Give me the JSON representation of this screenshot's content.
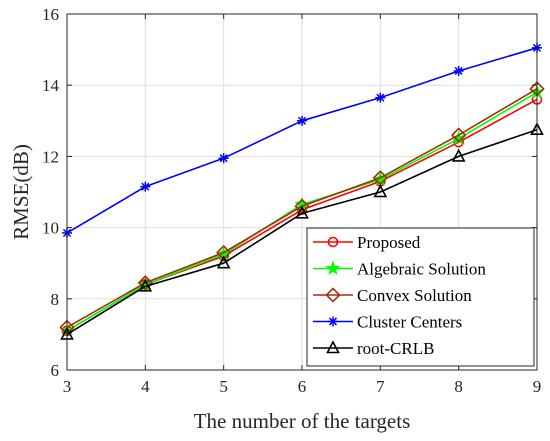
{
  "chart_data": {
    "type": "line",
    "title": "",
    "xlabel": "The number of the targets",
    "ylabel": "RMSE(dB)",
    "xlim": [
      3,
      9
    ],
    "ylim": [
      6,
      16
    ],
    "xticks": [
      3,
      4,
      5,
      6,
      7,
      8,
      9
    ],
    "yticks": [
      6,
      8,
      10,
      12,
      14,
      16
    ],
    "grid": true,
    "legend_position": "bottom-right",
    "x": [
      3,
      4,
      5,
      6,
      7,
      8,
      9
    ],
    "series": [
      {
        "name": "Proposed",
        "color": "#ff0000",
        "marker": "circle",
        "values": [
          7.1,
          8.4,
          9.2,
          10.5,
          11.3,
          12.4,
          13.6
        ]
      },
      {
        "name": "Algebraic Solution",
        "color": "#00ff00",
        "marker": "star",
        "values": [
          7.1,
          8.4,
          9.25,
          10.65,
          11.35,
          12.5,
          13.8
        ]
      },
      {
        "name": "Convex Solution",
        "color": "#a0300a",
        "marker": "diamond",
        "values": [
          7.2,
          8.45,
          9.3,
          10.6,
          11.4,
          12.6,
          13.9
        ]
      },
      {
        "name": "Cluster Centers",
        "color": "#0000ff",
        "marker": "asterisk",
        "values": [
          9.85,
          11.15,
          11.95,
          13.0,
          13.65,
          14.4,
          15.05
        ]
      },
      {
        "name": "root-CRLB",
        "color": "#000000",
        "marker": "triangle",
        "values": [
          7.0,
          8.35,
          9.0,
          10.4,
          11.0,
          12.0,
          12.75
        ]
      }
    ]
  }
}
